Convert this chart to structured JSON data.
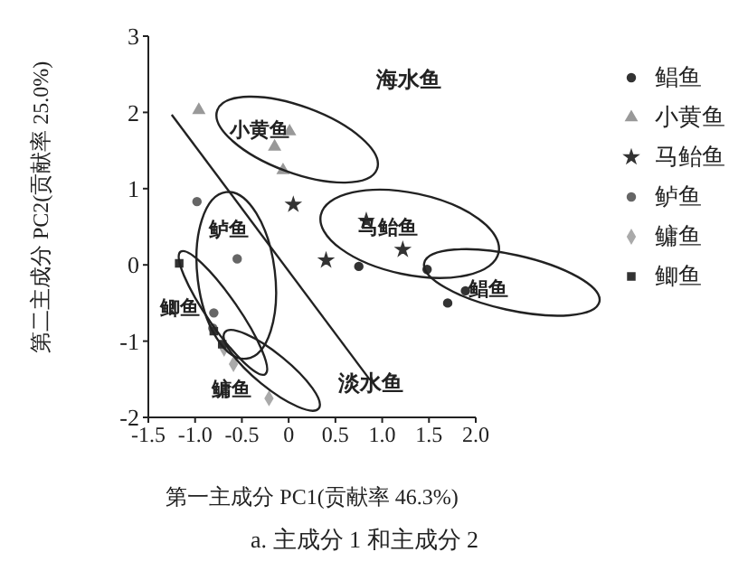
{
  "chart_data": {
    "type": "scatter",
    "title": "a. 主成分 1 和主成分 2",
    "xlabel": "第一主成分 PC1(贡献率 46.3%)",
    "ylabel": "第二主成分 PC2(贡献率 25.0%)",
    "xlim": [
      -1.5,
      2.0
    ],
    "xticks": [
      {
        "value": -1.5,
        "label": "-1.5"
      },
      {
        "value": -1.0,
        "label": "-1.0"
      },
      {
        "value": -0.5,
        "label": "-0.5"
      },
      0,
      0.5,
      {
        "value": 1.0,
        "label": "1.0"
      },
      1.5,
      {
        "value": 2.0,
        "label": "2.0"
      }
    ],
    "ylim": [
      -2,
      3
    ],
    "yticks": [
      -2,
      -1,
      0,
      1,
      2,
      3
    ],
    "grid": false,
    "legend": "right",
    "series": [
      {
        "name": "鲳鱼",
        "color": "#333333",
        "marker": "circle",
        "x": [
          0.75,
          1.48,
          1.7,
          1.89
        ],
        "values": [
          -0.02,
          -0.06,
          -0.5,
          -0.34
        ]
      },
      {
        "name": "小黄鱼",
        "color": "#999999",
        "marker": "triangle",
        "x": [
          -0.96,
          0.01,
          -0.15,
          -0.06
        ],
        "values": [
          2.03,
          1.75,
          1.55,
          1.24
        ]
      },
      {
        "name": "马鲐鱼",
        "color": "#333333",
        "marker": "star",
        "x": [
          0.05,
          0.83,
          0.4,
          1.22
        ],
        "values": [
          0.79,
          0.58,
          0.06,
          0.2
        ]
      },
      {
        "name": "鲈鱼",
        "color": "#666666",
        "marker": "circle",
        "x": [
          -0.98,
          -0.55,
          -0.8,
          -0.81
        ],
        "values": [
          0.83,
          0.08,
          -0.63,
          -0.83
        ]
      },
      {
        "name": "鳙鱼",
        "color": "#aaaaaa",
        "marker": "diamond",
        "x": [
          -0.69,
          -0.59,
          -0.21
        ],
        "values": [
          -1.1,
          -1.3,
          -1.75
        ]
      },
      {
        "name": "鲫鱼",
        "color": "#333333",
        "marker": "square",
        "x": [
          -1.17,
          -0.8,
          -0.71
        ],
        "values": [
          0.02,
          -0.87,
          -1.04
        ]
      },
      {
        "type": "line",
        "color": "#222222",
        "marker": "none",
        "x": [
          -1.25,
          0.87
        ],
        "values": [
          1.97,
          -1.51
        ]
      }
    ],
    "annotations": [
      "海水鱼",
      "淡水鱼"
    ]
  }
}
